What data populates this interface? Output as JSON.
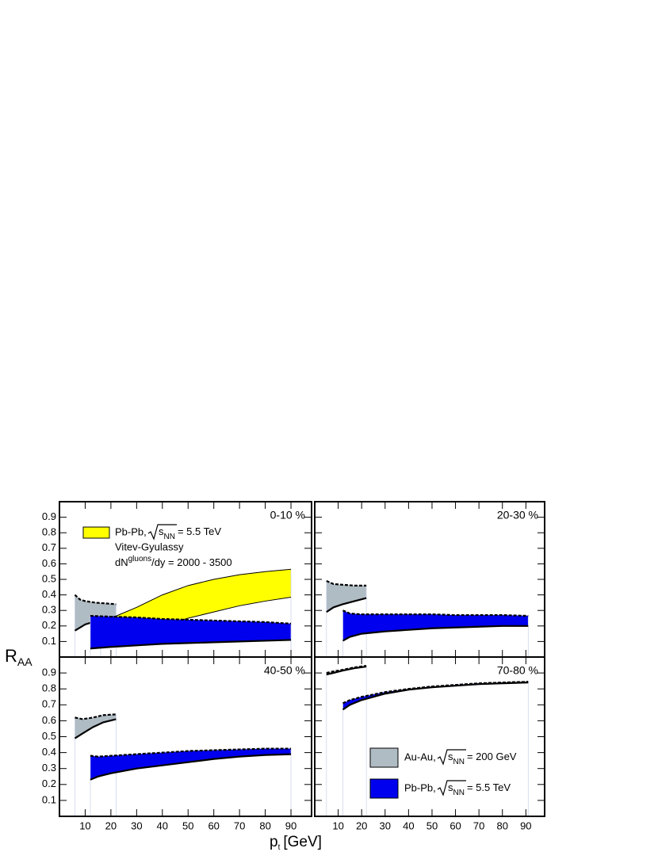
{
  "chart_data": [
    {
      "type": "band",
      "label": "0-10 %",
      "xlim": [
        0,
        98
      ],
      "ylim": [
        0,
        1
      ],
      "xticks": [
        10,
        20,
        30,
        40,
        50,
        60,
        70,
        80,
        90
      ],
      "yticks": [
        0.1,
        0.2,
        0.3,
        0.4,
        0.5,
        0.6,
        0.7,
        0.8,
        0.9
      ],
      "series": [
        {
          "color": "#b0bcc4",
          "x": [
            6,
            8,
            10,
            14,
            18,
            22
          ],
          "upper": [
            0.4,
            0.37,
            0.36,
            0.35,
            0.345,
            0.34
          ],
          "lower": [
            0.17,
            0.19,
            0.21,
            0.23,
            0.25,
            0.26
          ]
        },
        {
          "name": "Pb-Pb,",
          "energy_symbol": "s",
          "energy_sub": "NN",
          "energy": "= 5.5 TeV",
          "color": "#ffff00",
          "x": [
            16,
            20,
            30,
            40,
            50,
            60,
            70,
            80,
            90
          ],
          "upper": [
            0.21,
            0.25,
            0.32,
            0.4,
            0.46,
            0.5,
            0.53,
            0.55,
            0.565
          ],
          "lower": [
            0.1,
            0.12,
            0.16,
            0.2,
            0.25,
            0.29,
            0.33,
            0.36,
            0.385
          ]
        },
        {
          "color": "#0000ee",
          "x": [
            12,
            20,
            30,
            40,
            50,
            60,
            70,
            80,
            90
          ],
          "upper": [
            0.265,
            0.26,
            0.255,
            0.245,
            0.24,
            0.235,
            0.23,
            0.225,
            0.215
          ],
          "lower": [
            0.055,
            0.065,
            0.075,
            0.085,
            0.09,
            0.095,
            0.1,
            0.105,
            0.11
          ]
        }
      ],
      "model": "Vitev-Gyulassy",
      "multiplicity": {
        "base": "dN",
        "sup": "gluons",
        "rest": "/dy = 2000 - 3500"
      }
    },
    {
      "type": "band",
      "label": "20-30 %",
      "xlim": [
        0,
        98
      ],
      "ylim": [
        0,
        1
      ],
      "xticks": [
        10,
        20,
        30,
        40,
        50,
        60,
        70,
        80,
        90
      ],
      "yticks": [
        0.1,
        0.2,
        0.3,
        0.4,
        0.5,
        0.6,
        0.7,
        0.8,
        0.9
      ],
      "series": [
        {
          "color": "#b0bcc4",
          "x": [
            5,
            8,
            12,
            17,
            22
          ],
          "upper": [
            0.49,
            0.47,
            0.465,
            0.46,
            0.46
          ],
          "lower": [
            0.29,
            0.32,
            0.34,
            0.36,
            0.38
          ]
        },
        {
          "color": "#0000ee",
          "x": [
            12,
            15,
            20,
            30,
            40,
            50,
            60,
            70,
            80,
            91
          ],
          "upper": [
            0.3,
            0.28,
            0.275,
            0.275,
            0.275,
            0.275,
            0.27,
            0.27,
            0.27,
            0.265
          ],
          "lower": [
            0.105,
            0.13,
            0.15,
            0.165,
            0.175,
            0.185,
            0.19,
            0.195,
            0.2,
            0.2
          ]
        }
      ]
    },
    {
      "type": "band",
      "label": "40-50 %",
      "xlim": [
        0,
        98
      ],
      "ylim": [
        0,
        1
      ],
      "xticks": [
        10,
        20,
        30,
        40,
        50,
        60,
        70,
        80,
        90
      ],
      "yticks": [
        0.1,
        0.2,
        0.3,
        0.4,
        0.5,
        0.6,
        0.7,
        0.8,
        0.9
      ],
      "series": [
        {
          "color": "#b0bcc4",
          "x": [
            6,
            9,
            13,
            17,
            22
          ],
          "upper": [
            0.62,
            0.61,
            0.62,
            0.635,
            0.64
          ],
          "lower": [
            0.49,
            0.52,
            0.56,
            0.59,
            0.61
          ]
        },
        {
          "color": "#0000ee",
          "x": [
            12,
            15,
            20,
            30,
            40,
            50,
            60,
            70,
            80,
            90
          ],
          "upper": [
            0.38,
            0.375,
            0.38,
            0.39,
            0.4,
            0.41,
            0.415,
            0.42,
            0.425,
            0.425
          ],
          "lower": [
            0.23,
            0.25,
            0.27,
            0.3,
            0.32,
            0.34,
            0.36,
            0.375,
            0.385,
            0.39
          ]
        }
      ]
    },
    {
      "type": "band",
      "label": "70-80 %",
      "xlim": [
        0,
        98
      ],
      "ylim": [
        0,
        1
      ],
      "xticks": [
        10,
        20,
        30,
        40,
        50,
        60,
        70,
        80,
        90
      ],
      "yticks": [
        0.1,
        0.2,
        0.3,
        0.4,
        0.5,
        0.6,
        0.7,
        0.8,
        0.9
      ],
      "series": [
        {
          "name": "Au-Au,",
          "energy_symbol": "s",
          "energy_sub": "NN",
          "energy": "= 200 GeV",
          "color": "#b0bcc4",
          "x": [
            5,
            8,
            12,
            17,
            22
          ],
          "upper": [
            0.9,
            0.91,
            0.92,
            0.935,
            0.945
          ],
          "lower": [
            0.89,
            0.9,
            0.915,
            0.93,
            0.94
          ]
        },
        {
          "name": "Pb-Pb,",
          "energy_symbol": "s",
          "energy_sub": "NN",
          "energy": "= 5.5 TeV",
          "color": "#0000ee",
          "x": [
            12,
            15,
            20,
            30,
            40,
            50,
            60,
            70,
            80,
            91
          ],
          "upper": [
            0.71,
            0.73,
            0.75,
            0.78,
            0.8,
            0.815,
            0.825,
            0.835,
            0.84,
            0.845
          ],
          "lower": [
            0.67,
            0.7,
            0.73,
            0.77,
            0.795,
            0.81,
            0.82,
            0.83,
            0.835,
            0.84
          ]
        }
      ]
    }
  ],
  "x_label": {
    "base": "p",
    "sub": "t",
    "unit": "[GeV]"
  },
  "y_label": {
    "base": "R",
    "sub": "AA"
  }
}
